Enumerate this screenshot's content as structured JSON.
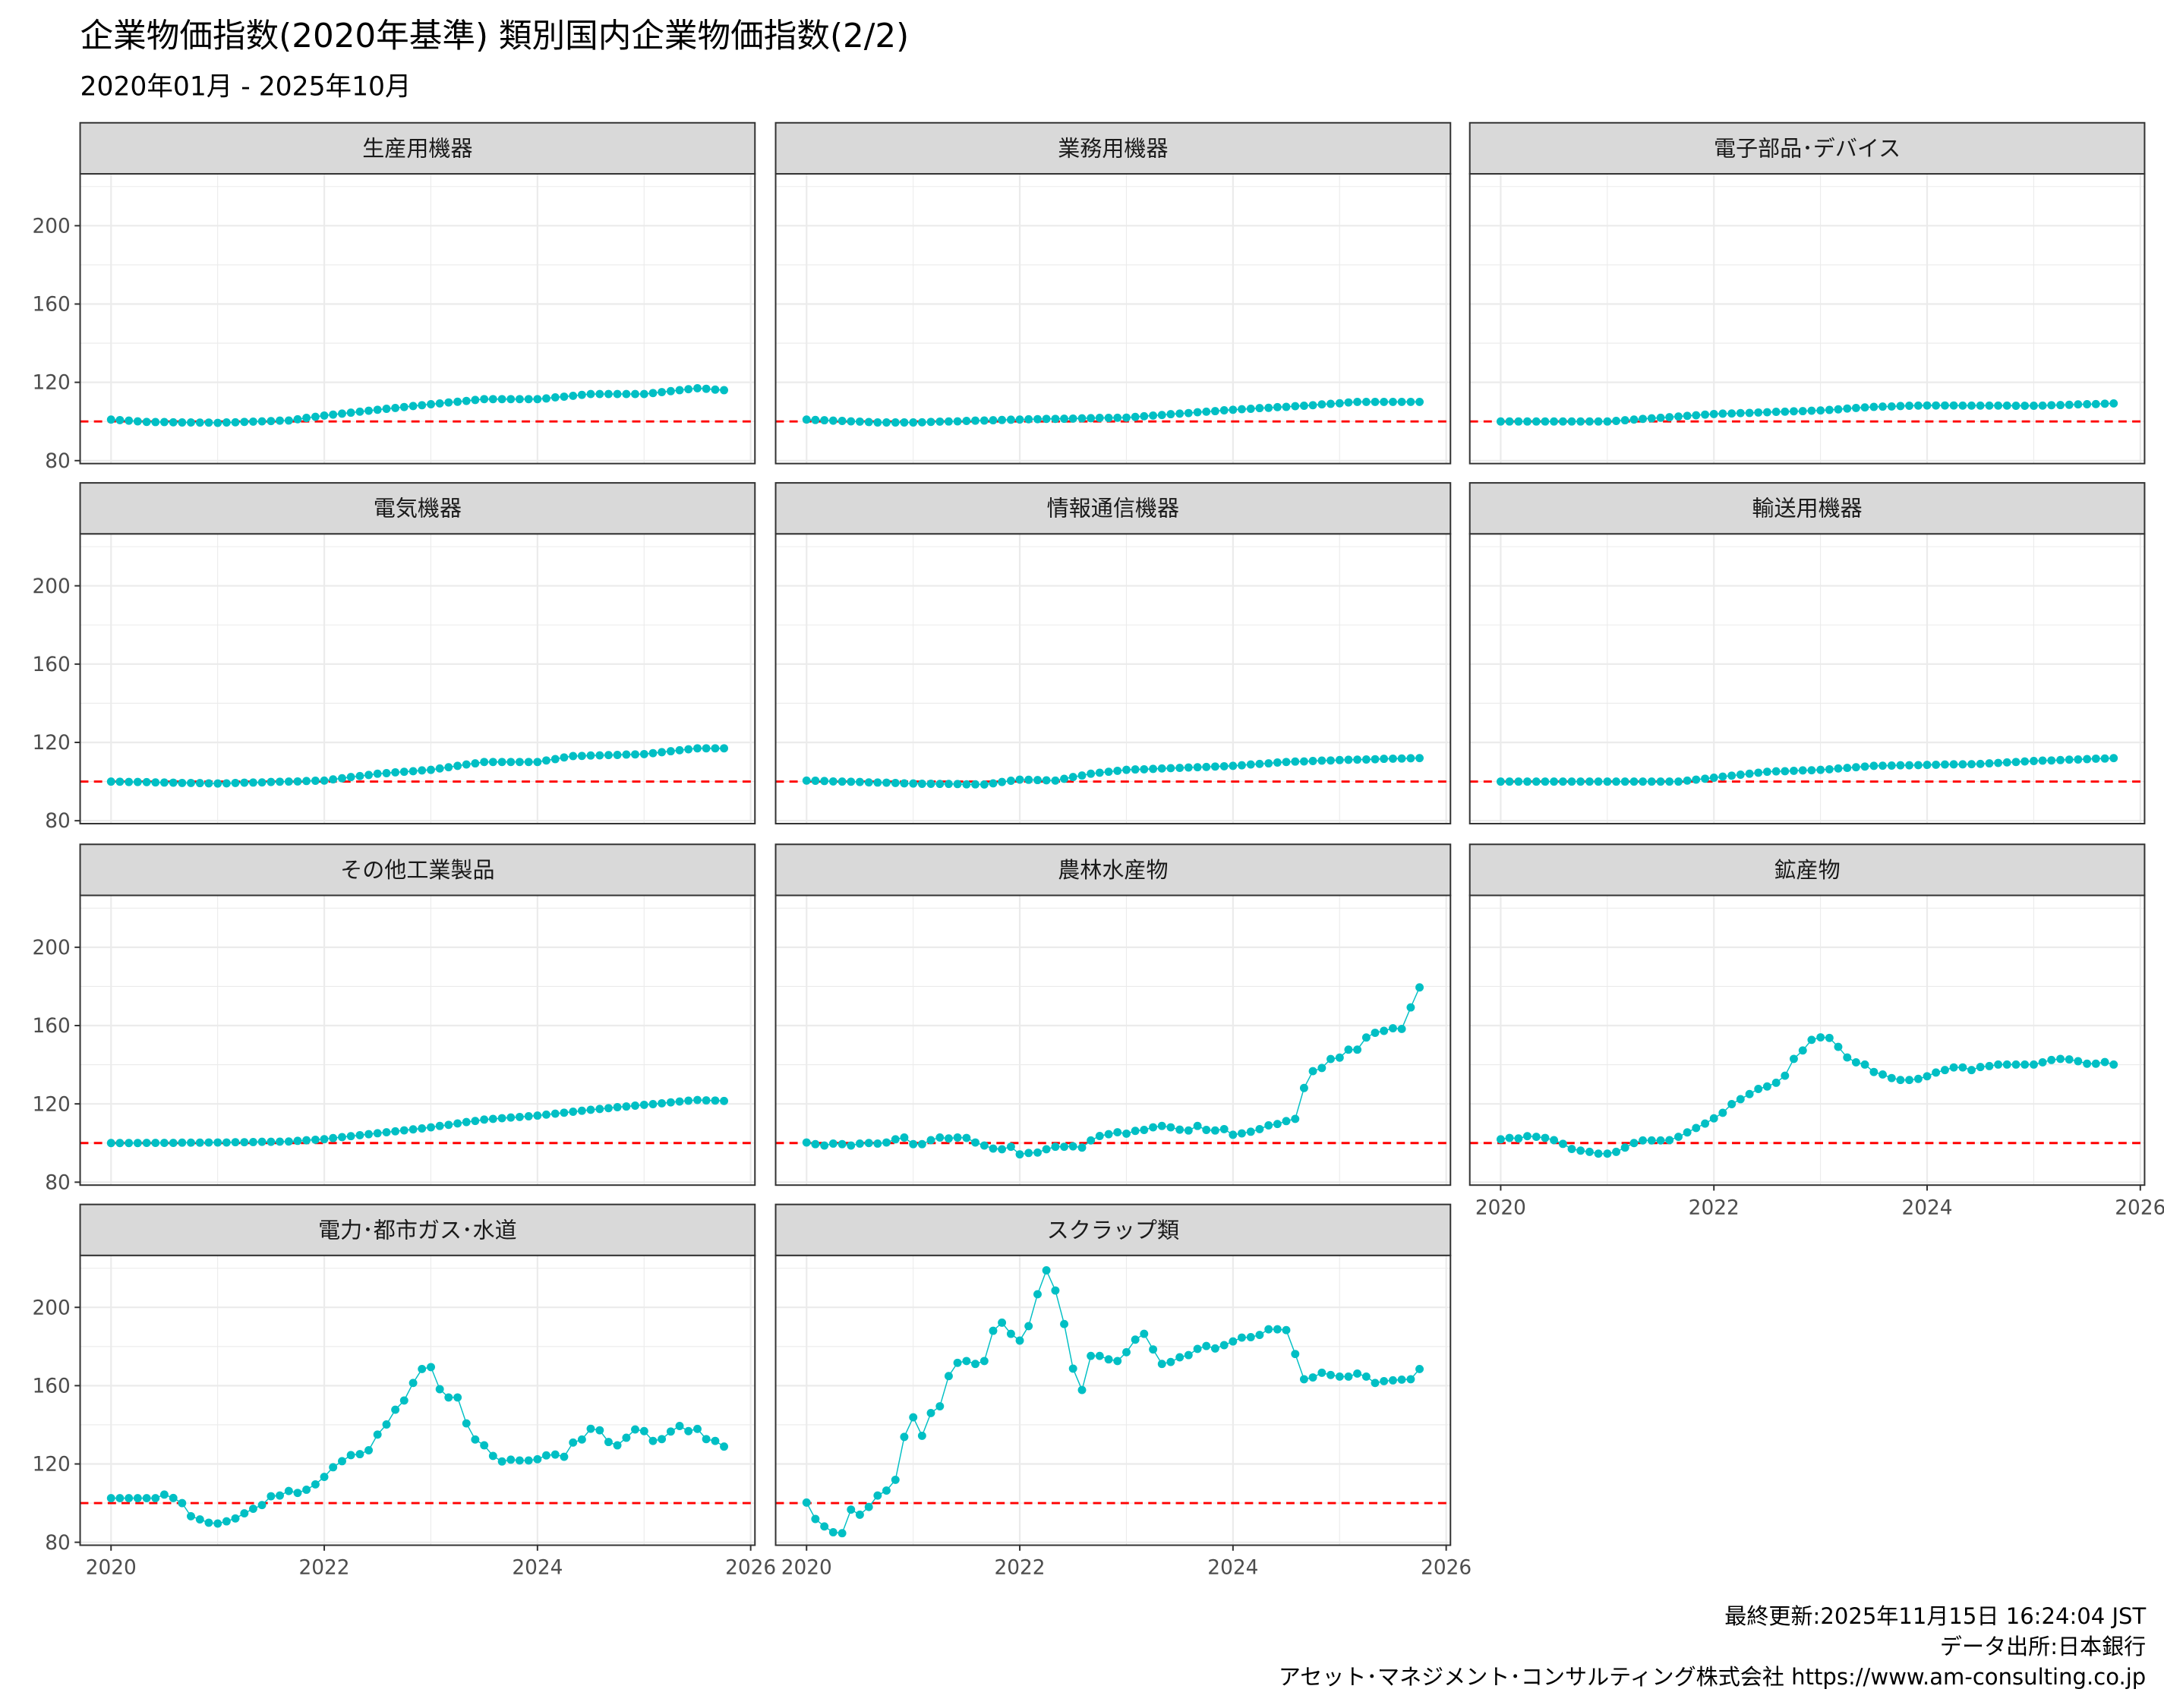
{
  "header": {
    "title": "企業物価指数(2020年基準) 類別国内企業物価指数(2/2)",
    "subtitle": "2020年01月 - 2025年10月"
  },
  "caption": {
    "line1": "最終更新:2025年11月15日 16:24:04 JST",
    "line2": "データ出所:日本銀行",
    "line3": "アセット･マネジメント･コンサルティング株式会社 https://www.am-consulting.co.jp"
  },
  "colors": {
    "point": "#00bfc4",
    "reference": "#ff0000",
    "strip": "#d9d9d9",
    "grid": "#ebebeb"
  },
  "chart_data": {
    "type": "line",
    "facet_layout": "3 columns, 4 rows",
    "x_start": "2020-01",
    "x_end": "2025-10",
    "frequency": "monthly",
    "xlim": [
      2019.71,
      2026.04
    ],
    "ylim": [
      78.5,
      226.5
    ],
    "x_ticks": [
      2020,
      2022,
      2024,
      2026
    ],
    "y_ticks": [
      80,
      120,
      160,
      200
    ],
    "reference_line": 100,
    "grid": true,
    "series": [
      {
        "name": "生産用機器",
        "values": [
          101,
          100.7,
          100.4,
          100.1,
          99.8,
          99.7,
          99.7,
          99.6,
          99.5,
          99.5,
          99.4,
          99.4,
          99.3,
          99.5,
          99.6,
          99.8,
          99.9,
          100.1,
          100.2,
          100.4,
          100.5,
          101.1,
          101.8,
          102.4,
          103,
          103.5,
          104,
          104.5,
          105,
          105.5,
          106,
          106.5,
          106.9,
          107.4,
          107.9,
          108.3,
          108.8,
          109.2,
          109.7,
          110.1,
          110.5,
          111,
          111.4,
          111.4,
          111.4,
          111.4,
          111.4,
          111.4,
          111.4,
          111.8,
          112.3,
          112.7,
          113.1,
          113.6,
          114,
          114,
          114,
          114,
          114,
          114,
          114,
          114.5,
          115,
          115.5,
          116,
          116.5,
          117,
          116.7,
          116.3,
          116
        ]
      },
      {
        "name": "業務用機器",
        "values": [
          101,
          100.8,
          100.6,
          100.4,
          100.3,
          100.1,
          99.9,
          99.7,
          99.5,
          99.5,
          99.5,
          99.5,
          99.5,
          99.6,
          99.8,
          99.9,
          100,
          100.1,
          100.3,
          100.4,
          100.5,
          100.6,
          100.8,
          100.9,
          101,
          101.1,
          101.2,
          101.3,
          101.3,
          101.4,
          101.5,
          101.6,
          101.7,
          101.8,
          101.8,
          101.9,
          102,
          102.3,
          102.7,
          103,
          103.3,
          103.7,
          104,
          104.3,
          104.7,
          105,
          105.3,
          105.7,
          106,
          106.3,
          106.5,
          106.8,
          107,
          107.3,
          107.5,
          107.8,
          108,
          108.3,
          108.7,
          109,
          109.3,
          109.7,
          110,
          110,
          110,
          110,
          110,
          110,
          110,
          110
        ]
      },
      {
        "name": "電子部品･デバイス",
        "values": [
          100,
          100,
          100,
          100,
          100,
          100,
          100,
          100,
          100,
          100,
          100,
          100,
          100,
          100.3,
          100.6,
          101,
          101.3,
          101.6,
          101.9,
          102.2,
          102.5,
          102.9,
          103.2,
          103.5,
          103.8,
          104,
          104.1,
          104.3,
          104.4,
          104.6,
          104.7,
          104.9,
          105,
          105.2,
          105.3,
          105.5,
          105.6,
          105.9,
          106.2,
          106.6,
          106.9,
          107.2,
          107.5,
          107.6,
          107.7,
          107.9,
          108,
          108.1,
          108.2,
          108.2,
          108.2,
          108.2,
          108.1,
          108.1,
          108.1,
          108.1,
          108.1,
          108.1,
          108,
          108,
          108,
          108.1,
          108.3,
          108.4,
          108.5,
          108.7,
          108.8,
          108.9,
          109.1,
          109.2
        ]
      },
      {
        "name": "電気機器",
        "values": [
          100,
          99.9,
          99.8,
          99.8,
          99.7,
          99.6,
          99.5,
          99.4,
          99.3,
          99.3,
          99.2,
          99.1,
          99,
          99.1,
          99.3,
          99.4,
          99.5,
          99.6,
          99.8,
          99.9,
          100,
          100.1,
          100.3,
          100.4,
          100.5,
          101.1,
          101.7,
          102.3,
          102.8,
          103.4,
          104,
          104.3,
          104.7,
          105,
          105.3,
          105.7,
          106,
          106.7,
          107.3,
          108,
          108.7,
          109.3,
          110,
          110,
          110,
          110,
          110,
          110,
          110,
          110.8,
          111.5,
          112.3,
          113,
          113.1,
          113.3,
          113.4,
          113.5,
          113.6,
          113.8,
          113.9,
          114,
          114.5,
          115,
          115.5,
          116,
          116.5,
          117,
          117,
          117,
          117
        ]
      },
      {
        "name": "情報通信機器",
        "values": [
          100.5,
          100.4,
          100.3,
          100.1,
          100,
          99.9,
          99.8,
          99.6,
          99.5,
          99.4,
          99.3,
          99.1,
          99,
          98.9,
          98.9,
          98.8,
          98.8,
          98.7,
          98.6,
          98.6,
          98.5,
          99.1,
          99.8,
          100.4,
          101,
          100.9,
          100.8,
          100.6,
          100.5,
          101.4,
          102.3,
          103.1,
          104,
          104.5,
          105,
          105.5,
          106,
          106.2,
          106.3,
          106.5,
          106.7,
          106.8,
          107,
          107.2,
          107.3,
          107.5,
          107.7,
          107.8,
          108,
          108.3,
          108.7,
          109,
          109.3,
          109.7,
          110,
          110.2,
          110.3,
          110.5,
          110.7,
          110.8,
          111,
          111.1,
          111.2,
          111.3,
          111.4,
          111.6,
          111.7,
          111.8,
          111.9,
          112
        ]
      },
      {
        "name": "輸送用機器",
        "values": [
          100,
          100,
          100,
          100,
          100,
          100,
          100,
          100,
          100,
          100,
          100,
          100,
          100,
          100,
          100,
          100,
          100,
          100,
          100,
          100,
          100,
          100.5,
          101,
          101.5,
          102,
          102.5,
          103,
          103.5,
          104,
          104.5,
          105,
          105.2,
          105.3,
          105.5,
          105.7,
          105.8,
          106,
          106.3,
          106.7,
          107,
          107.3,
          107.7,
          108,
          108.1,
          108.2,
          108.3,
          108.3,
          108.4,
          108.5,
          108.6,
          108.7,
          108.8,
          108.8,
          108.9,
          109,
          109.3,
          109.5,
          109.8,
          110,
          110.3,
          110.5,
          110.7,
          110.8,
          111,
          111.2,
          111.3,
          111.5,
          111.7,
          111.8,
          112
        ]
      },
      {
        "name": "その他工業製品",
        "values": [
          100,
          100,
          100,
          100,
          100.1,
          100.1,
          100.1,
          100.1,
          100.2,
          100.2,
          100.2,
          100.3,
          100.3,
          100.3,
          100.4,
          100.4,
          100.5,
          100.6,
          100.6,
          100.7,
          100.8,
          101.1,
          101.4,
          101.7,
          102,
          102.5,
          103,
          103.5,
          104,
          104.5,
          105,
          105.5,
          106,
          106.5,
          107,
          107.5,
          108,
          108.7,
          109.3,
          110,
          110.7,
          111.3,
          112,
          112.3,
          112.7,
          113,
          113.3,
          113.7,
          114,
          114.5,
          115,
          115.5,
          116,
          116.5,
          117,
          117.4,
          117.8,
          118.3,
          118.7,
          119.1,
          119.5,
          119.9,
          120.3,
          120.8,
          121.2,
          121.6,
          122,
          121.8,
          121.7,
          121.5
        ]
      },
      {
        "name": "農林水産物",
        "values": [
          100.3,
          99.4,
          98.7,
          99.7,
          99.4,
          98.7,
          99.7,
          100,
          99.7,
          100.3,
          101.9,
          102.8,
          99.4,
          99.4,
          101.5,
          102.8,
          102.3,
          102.8,
          102.6,
          100.3,
          98.7,
          97.2,
          96.8,
          98.1,
          94.2,
          94.9,
          95.1,
          96.8,
          98.1,
          98.1,
          98.3,
          97.7,
          101.3,
          103.6,
          104.5,
          105.5,
          104.8,
          106.2,
          106.7,
          108,
          108.7,
          108,
          106.8,
          106.4,
          108.7,
          106.7,
          106.4,
          107.1,
          104.2,
          104.9,
          105.8,
          107.1,
          109,
          109.7,
          111.2,
          112.3,
          128.1,
          136.7,
          138.3,
          142.9,
          143.6,
          147.7,
          147.7,
          153.9,
          156.3,
          157.3,
          158.6,
          158.3,
          169.3,
          179.5
        ]
      },
      {
        "name": "鉱産物",
        "values": [
          101.9,
          102.6,
          102.3,
          103.5,
          103.2,
          102.6,
          101.5,
          99.6,
          97,
          96.1,
          95.5,
          94.6,
          94.6,
          95.5,
          97.7,
          100,
          101.3,
          101.3,
          101.3,
          101.5,
          103.2,
          105.4,
          107.7,
          109.9,
          112.6,
          115.4,
          119.9,
          122.4,
          125,
          127.6,
          128.9,
          130.8,
          134.4,
          143,
          147.3,
          152.7,
          154,
          153.7,
          149.1,
          143.7,
          141.2,
          140.1,
          136.3,
          135,
          133.2,
          132.2,
          132.2,
          132.8,
          134.1,
          136,
          137.3,
          138.6,
          138.6,
          137.3,
          138.8,
          139.3,
          140.1,
          140.1,
          140.1,
          140.1,
          140.1,
          141.2,
          142.4,
          143,
          142.7,
          141.8,
          140.5,
          140.5,
          141.4,
          140.1
        ]
      },
      {
        "name": "電力･都市ガス･水道",
        "values": [
          102.5,
          102.5,
          102.5,
          102.5,
          102.5,
          102.5,
          104.4,
          102.6,
          100,
          93.3,
          91.7,
          90,
          89.6,
          90.7,
          92.2,
          94.8,
          97.1,
          99,
          103.5,
          103.9,
          106.2,
          105.2,
          106.8,
          109.6,
          113.4,
          118.3,
          121.4,
          124.5,
          125,
          127,
          135,
          140.2,
          147.7,
          152.4,
          161.4,
          168.5,
          169.5,
          158.2,
          154,
          154,
          140.7,
          132.5,
          129.5,
          124.1,
          121.3,
          122.2,
          121.8,
          121.8,
          122.4,
          124.4,
          124.8,
          123.7,
          130.9,
          132.5,
          138,
          137.2,
          131.2,
          129.5,
          133.4,
          137.6,
          136.8,
          131.8,
          132.7,
          136.6,
          139.4,
          136.8,
          137.9,
          132.7,
          131.8,
          128.9
        ]
      },
      {
        "name": "スクラップ類",
        "values": [
          100.3,
          91.9,
          88.1,
          85.1,
          84.6,
          96.7,
          94.1,
          98,
          103.9,
          106.4,
          111.9,
          133.8,
          143.8,
          134.4,
          146,
          149.5,
          164.9,
          171.7,
          172.6,
          171.1,
          172.6,
          188,
          192.2,
          186.5,
          183,
          190.4,
          206.7,
          218.9,
          208.6,
          191.5,
          168.7,
          157.8,
          175.2,
          175.2,
          173.4,
          172.6,
          177.1,
          183.5,
          186.5,
          178.5,
          171.1,
          172.1,
          174.5,
          175.6,
          178.8,
          180.3,
          179,
          180.7,
          182.6,
          184.6,
          184.8,
          185.9,
          188.8,
          188.8,
          188.4,
          176.2,
          163.3,
          164.2,
          166.6,
          165.5,
          164.6,
          164.6,
          166.2,
          164.6,
          161.4,
          162.3,
          162.7,
          163.1,
          163.3,
          168.5
        ]
      }
    ]
  }
}
